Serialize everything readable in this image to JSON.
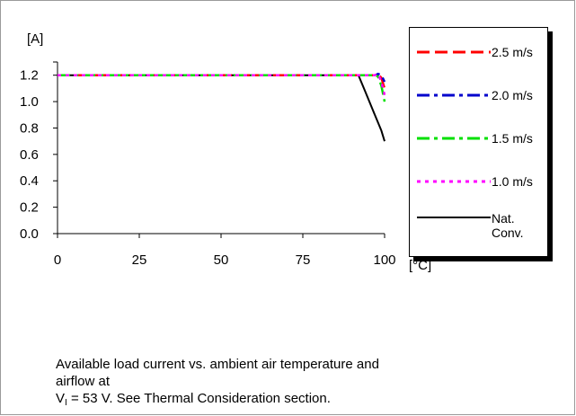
{
  "chart_data": {
    "type": "line",
    "title": "",
    "ylabel": "[A]",
    "xlabel": "[°C]",
    "xlim": [
      0,
      100
    ],
    "ylim": [
      0,
      1.3
    ],
    "x_ticks": [
      0,
      25,
      50,
      75,
      100
    ],
    "x_tick_labels": [
      "0",
      "25",
      "50",
      "75",
      "100"
    ],
    "y_ticks": [
      0,
      0.2,
      0.4,
      0.6,
      0.8,
      1.0,
      1.2
    ],
    "y_tick_labels": [
      "0.0",
      "0.2",
      "0.4",
      "0.6",
      "0.8",
      "1.0",
      "1.2"
    ],
    "grid": false,
    "legend": "right",
    "series": [
      {
        "name": "2.5 m/s",
        "color": "#ff0000",
        "dash": "dash",
        "x": [
          0,
          97,
          98,
          99,
          100
        ],
        "y": [
          1.2,
          1.2,
          1.21,
          1.18,
          1.1
        ]
      },
      {
        "name": "2.0 m/s",
        "color": "#0000cc",
        "dash": "dashdot",
        "x": [
          0,
          97,
          98,
          99,
          100
        ],
        "y": [
          1.2,
          1.2,
          1.21,
          1.2,
          1.15
        ]
      },
      {
        "name": "1.5 m/s",
        "color": "#00e000",
        "dash": "dashdot",
        "x": [
          0,
          96,
          97,
          98,
          99,
          100
        ],
        "y": [
          1.2,
          1.2,
          1.2,
          1.19,
          1.12,
          1.0
        ]
      },
      {
        "name": "1.0 m/s",
        "color": "#ff00ff",
        "dash": "dot",
        "x": [
          0,
          97,
          98,
          99,
          100
        ],
        "y": [
          1.2,
          1.2,
          1.21,
          1.15,
          1.05
        ]
      },
      {
        "name": "Nat.\nConv.",
        "color": "#000000",
        "dash": "solid",
        "x": [
          0,
          92,
          94,
          97,
          99,
          100
        ],
        "y": [
          1.2,
          1.2,
          1.08,
          0.9,
          0.78,
          0.7
        ]
      }
    ]
  },
  "caption": {
    "line1": "Available load current vs. ambient air temperature and",
    "line2": "airflow at",
    "line3_prefix": "V",
    "line3_sub": "I",
    "line3_rest": " = 53 V. See Thermal Consideration section."
  }
}
